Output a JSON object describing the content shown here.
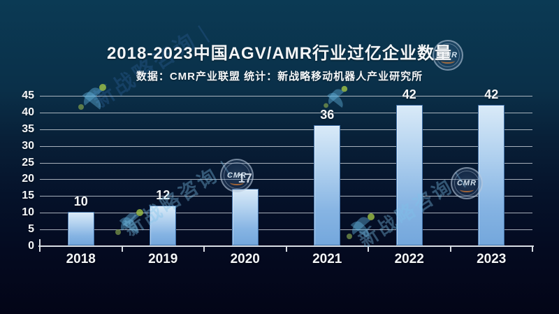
{
  "title": "2018-2023中国AGV/AMR行业过亿企业数量",
  "subtitle": "数据：CMR产业联盟  统计：新战略移动机器人产业研究所",
  "watermarks": {
    "cmr_badge": "CMR",
    "brand": "新战略咨询",
    "divider": "|"
  },
  "colors": {
    "bg_top": "#0b3a54",
    "bg_bottom": "#030517",
    "grid": "#c3cad2",
    "axis": "#d8dde3",
    "text": "#f4f6f8",
    "bar_top": "#d9eaf8",
    "bar_bottom": "#74a7dc",
    "bar_border": "#3d6ea6",
    "watermark_blue": "#7dc3eb",
    "watermark_green": "#9fc23f",
    "badge_accent_orange": "#eb822d"
  },
  "chart_data": {
    "type": "bar",
    "title": "2018-2023中国AGV/AMR行业过亿企业数量",
    "subtitle": "数据：CMR产业联盟  统计：新战略移动机器人产业研究所",
    "categories": [
      "2018",
      "2019",
      "2020",
      "2021",
      "2022",
      "2023"
    ],
    "values": [
      10,
      12,
      17,
      36,
      42,
      42
    ],
    "xlabel": "",
    "ylabel": "",
    "ylim": [
      0,
      45
    ],
    "ytick_step": 5,
    "grid": true,
    "legend": false,
    "value_labels": true
  }
}
